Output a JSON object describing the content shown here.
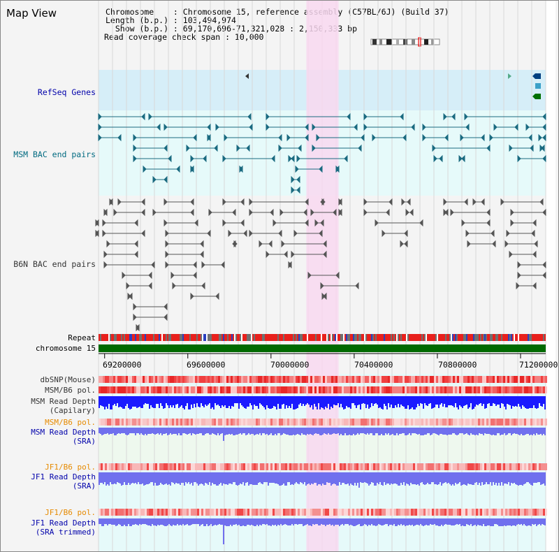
{
  "app": {
    "title": "Map View"
  },
  "info": {
    "chromosome_line": "Chromosome    : Chromosome 15, reference assembly (C57BL/6J) (Build 37)",
    "length_line": "Length (b.p.) : 103,494,974",
    "show_line": "  Show (b.p.) : 69,170,696-71,321,028 : 2,150,333 bp",
    "coverage_line": "Read coverage check span : 10,000"
  },
  "tracks": {
    "refseq": {
      "label": "RefSeq Genes",
      "color": "#0000aa"
    },
    "msm_bac": {
      "label": "MSM BAC end pairs",
      "color": "#006a80"
    },
    "b6n_bac": {
      "label": "B6N BAC end pairs",
      "color": "#333333"
    },
    "repeat": {
      "label": "Repeat",
      "color": "#000000"
    },
    "chromosome": {
      "label": "chromosome 15",
      "color": "#000000"
    },
    "dbsnp": {
      "label": "dbSNP(Mouse)",
      "color": "#333333"
    },
    "msm_b6_pol_1": {
      "label": "MSM/B6 pol.",
      "color": "#333333"
    },
    "msm_depth_cap_1": {
      "label": "MSM Read Depth",
      "color": "#333333"
    },
    "msm_depth_cap_2": {
      "label": "(Capilary)",
      "color": "#333333"
    },
    "msm_b6_pol_2": {
      "label": "MSM/B6 pol.",
      "color": "#e68a00"
    },
    "msm_depth_sra_1": {
      "label": "MSM Read Depth",
      "color": "#0000aa"
    },
    "msm_depth_sra_2": {
      "label": "(SRA)",
      "color": "#0000aa"
    },
    "jf1_b6_pol_1": {
      "label": "JF1/B6 pol.",
      "color": "#e68a00"
    },
    "jf1_depth_sra_1": {
      "label": "JF1 Read Depth",
      "color": "#0000aa"
    },
    "jf1_depth_sra_2": {
      "label": "(SRA)",
      "color": "#0000aa"
    },
    "jf1_b6_pol_2": {
      "label": "JF1/B6 pol.",
      "color": "#e68a00"
    },
    "jf1_depth_trim_1": {
      "label": "JF1 Read Depth",
      "color": "#0000aa"
    },
    "jf1_depth_trim_2": {
      "label": "(SRA trimmed)",
      "color": "#0000aa"
    }
  },
  "axis": {
    "start_bp": 69170696,
    "end_bp": 71321028,
    "ticks": [
      "69200000",
      "69600000",
      "70000000",
      "70400000",
      "70800000",
      "71200000"
    ],
    "tick_values": [
      69200000,
      69600000,
      70000000,
      70400000,
      70800000,
      71200000
    ]
  },
  "highlight": {
    "start_bp": 70170000,
    "end_bp": 70325000,
    "color": "#f8d8f0"
  },
  "colors": {
    "refseq_bg": "#d6eef8",
    "msm_bg": "#e6fafa",
    "b6n_bg": "#f4f4f4",
    "chromosome_bar": "#006a00",
    "depth_blue": "#1a1aff",
    "depth_sra": "#7070ee",
    "pol_red": "#f03030",
    "pol_light": "#f8a8a8"
  }
}
